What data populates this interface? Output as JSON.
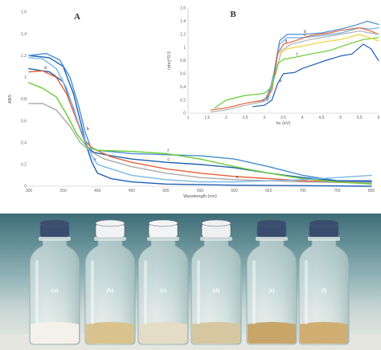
{
  "chart_data": [
    {
      "type": "line",
      "panel_letter": "A",
      "title": "",
      "xlabel": "Wavelength (nm)",
      "ylabel": "ABS",
      "xlim": [
        300,
        800
      ],
      "ylim": [
        0,
        1.6
      ],
      "xticks": [
        "300",
        "350",
        "400",
        "450",
        "500",
        "550",
        "600",
        "650",
        "700",
        "750",
        "800"
      ],
      "yticks": [
        "0",
        "0.2",
        "0.4",
        "0.6",
        "0.8",
        "1",
        "1.2",
        "1.4",
        "1.6"
      ],
      "grid": false,
      "series": [
        {
          "label": "a",
          "color": "#1f5fb3",
          "points": [
            [
              300,
              1.2
            ],
            [
              330,
              1.18
            ],
            [
              350,
              1.1
            ],
            [
              365,
              0.85
            ],
            [
              375,
              0.6
            ],
            [
              385,
              0.35
            ],
            [
              392,
              0.22
            ],
            [
              400,
              0.12
            ],
            [
              420,
              0.07
            ],
            [
              450,
              0.04
            ],
            [
              500,
              0.02
            ],
            [
              600,
              0.01
            ],
            [
              800,
              0.0
            ]
          ]
        },
        {
          "label": "b",
          "color": "#4a8ed0",
          "points": [
            [
              300,
              1.2
            ],
            [
              325,
              1.22
            ],
            [
              345,
              1.16
            ],
            [
              360,
              1.0
            ],
            [
              372,
              0.75
            ],
            [
              382,
              0.5
            ],
            [
              390,
              0.36
            ],
            [
              400,
              0.33
            ],
            [
              450,
              0.3
            ],
            [
              500,
              0.29
            ],
            [
              550,
              0.28
            ],
            [
              600,
              0.25
            ],
            [
              650,
              0.18
            ],
            [
              700,
              0.1
            ],
            [
              750,
              0.05
            ],
            [
              800,
              0.04
            ]
          ]
        },
        {
          "label": "c",
          "color": "#1f5fb3",
          "points": [
            [
              300,
              1.08
            ],
            [
              330,
              1.05
            ],
            [
              350,
              0.96
            ],
            [
              365,
              0.72
            ],
            [
              375,
              0.52
            ],
            [
              385,
              0.36
            ],
            [
              395,
              0.31
            ],
            [
              420,
              0.28
            ],
            [
              450,
              0.25
            ],
            [
              500,
              0.22
            ],
            [
              550,
              0.2
            ],
            [
              600,
              0.17
            ],
            [
              650,
              0.12
            ],
            [
              700,
              0.08
            ],
            [
              750,
              0.05
            ],
            [
              800,
              0.05
            ]
          ]
        },
        {
          "label": "d",
          "color": "#e8603a",
          "points": [
            [
              300,
              1.05
            ],
            [
              320,
              1.06
            ],
            [
              340,
              1.0
            ],
            [
              355,
              0.85
            ],
            [
              370,
              0.6
            ],
            [
              382,
              0.42
            ],
            [
              392,
              0.35
            ],
            [
              420,
              0.27
            ],
            [
              450,
              0.22
            ],
            [
              500,
              0.16
            ],
            [
              550,
              0.12
            ],
            [
              600,
              0.09
            ],
            [
              650,
              0.07
            ],
            [
              700,
              0.05
            ],
            [
              750,
              0.04
            ],
            [
              800,
              0.03
            ]
          ]
        },
        {
          "label": "e",
          "color": "#a9a9a9",
          "points": [
            [
              300,
              0.76
            ],
            [
              320,
              0.76
            ],
            [
              340,
              0.7
            ],
            [
              360,
              0.55
            ],
            [
              375,
              0.4
            ],
            [
              390,
              0.32
            ],
            [
              410,
              0.25
            ],
            [
              450,
              0.18
            ],
            [
              500,
              0.12
            ],
            [
              550,
              0.08
            ],
            [
              600,
              0.06
            ],
            [
              700,
              0.04
            ],
            [
              800,
              0.03
            ]
          ]
        },
        {
          "label": "f",
          "color": "#66cc33",
          "points": [
            [
              300,
              0.95
            ],
            [
              320,
              0.9
            ],
            [
              340,
              0.82
            ],
            [
              355,
              0.66
            ],
            [
              370,
              0.48
            ],
            [
              385,
              0.36
            ],
            [
              400,
              0.33
            ],
            [
              450,
              0.32
            ],
            [
              500,
              0.3
            ],
            [
              550,
              0.25
            ],
            [
              600,
              0.18
            ],
            [
              650,
              0.12
            ],
            [
              700,
              0.07
            ],
            [
              750,
              0.04
            ],
            [
              800,
              0.02
            ]
          ]
        },
        {
          "label": "",
          "color": "#7ab8e8",
          "points": [
            [
              300,
              1.18
            ],
            [
              320,
              1.17
            ],
            [
              340,
              1.08
            ],
            [
              355,
              0.9
            ],
            [
              370,
              0.62
            ],
            [
              382,
              0.42
            ],
            [
              392,
              0.28
            ],
            [
              400,
              0.2
            ],
            [
              450,
              0.1
            ],
            [
              500,
              0.06
            ],
            [
              550,
              0.04
            ],
            [
              600,
              0.04
            ],
            [
              650,
              0.05
            ],
            [
              700,
              0.06
            ],
            [
              750,
              0.08
            ],
            [
              800,
              0.1
            ]
          ]
        }
      ]
    },
    {
      "type": "line",
      "panel_letter": "B",
      "title": "",
      "xlabel": "hv (eV)",
      "ylabel": "(αhν)^0.5",
      "xlim": [
        1,
        6
      ],
      "ylim": [
        0,
        1.6
      ],
      "xticks": [
        "1",
        "1.5",
        "2",
        "2.5",
        "3",
        "3.5",
        "4",
        "4.5",
        "5",
        "5.5",
        "6"
      ],
      "yticks": [
        "0",
        "0.2",
        "0.4",
        "0.6",
        "0.8",
        "1",
        "1.2",
        "1.4",
        "1.6"
      ],
      "grid": false,
      "series": [
        {
          "label": "a",
          "color": "#1f5fb3",
          "points": [
            [
              2.7,
              0.1
            ],
            [
              3.0,
              0.12
            ],
            [
              3.2,
              0.2
            ],
            [
              3.35,
              0.45
            ],
            [
              3.5,
              0.6
            ],
            [
              3.8,
              0.62
            ],
            [
              4.0,
              0.68
            ],
            [
              4.3,
              0.74
            ],
            [
              4.6,
              0.8
            ],
            [
              5.0,
              0.87
            ],
            [
              5.3,
              0.9
            ],
            [
              5.6,
              1.05
            ],
            [
              5.8,
              0.98
            ],
            [
              6.0,
              0.8
            ]
          ]
        },
        {
          "label": "b",
          "color": "#4a8ed0",
          "points": [
            [
              2.9,
              0.18
            ],
            [
              3.1,
              0.25
            ],
            [
              3.25,
              0.6
            ],
            [
              3.4,
              1.1
            ],
            [
              3.6,
              1.2
            ],
            [
              4.0,
              1.2
            ],
            [
              4.5,
              1.22
            ],
            [
              5.0,
              1.28
            ],
            [
              5.4,
              1.34
            ],
            [
              5.7,
              1.4
            ],
            [
              6.0,
              1.35
            ]
          ]
        },
        {
          "label": "c",
          "color": "#6aaee6",
          "points": [
            [
              2.8,
              0.18
            ],
            [
              3.1,
              0.2
            ],
            [
              3.25,
              0.55
            ],
            [
              3.4,
              1.05
            ],
            [
              3.6,
              1.15
            ],
            [
              4.0,
              1.15
            ],
            [
              4.5,
              1.18
            ],
            [
              5.0,
              1.22
            ],
            [
              5.5,
              1.3
            ],
            [
              5.8,
              1.28
            ],
            [
              6.0,
              1.3
            ]
          ]
        },
        {
          "label": "d",
          "color": "#e8603a",
          "points": [
            [
              1.6,
              0.05
            ],
            [
              2.0,
              0.08
            ],
            [
              2.5,
              0.15
            ],
            [
              3.0,
              0.2
            ],
            [
              3.2,
              0.35
            ],
            [
              3.35,
              0.9
            ],
            [
              3.5,
              1.05
            ],
            [
              3.8,
              1.1
            ],
            [
              4.2,
              1.18
            ],
            [
              4.7,
              1.22
            ],
            [
              5.0,
              1.26
            ],
            [
              5.5,
              1.3
            ],
            [
              5.8,
              1.25
            ],
            [
              6.0,
              1.2
            ]
          ]
        },
        {
          "label": "e",
          "color": "#b0b0b0",
          "points": [
            [
              1.6,
              0.02
            ],
            [
              2.0,
              0.05
            ],
            [
              2.5,
              0.12
            ],
            [
              3.0,
              0.18
            ],
            [
              3.3,
              0.6
            ],
            [
              3.45,
              0.95
            ],
            [
              3.7,
              1.05
            ],
            [
              4.2,
              1.12
            ],
            [
              5.0,
              1.2
            ],
            [
              5.5,
              1.25
            ],
            [
              6.0,
              1.2
            ]
          ]
        },
        {
          "label": "f",
          "color": "#66cc33",
          "points": [
            [
              1.7,
              0.08
            ],
            [
              2.0,
              0.2
            ],
            [
              2.5,
              0.27
            ],
            [
              3.0,
              0.3
            ],
            [
              3.2,
              0.4
            ],
            [
              3.35,
              0.75
            ],
            [
              3.5,
              0.82
            ],
            [
              3.8,
              0.85
            ],
            [
              4.2,
              0.9
            ],
            [
              4.7,
              0.95
            ],
            [
              5.2,
              1.05
            ],
            [
              5.6,
              1.12
            ],
            [
              6.0,
              1.15
            ]
          ]
        },
        {
          "label": "",
          "color": "#f2d43a",
          "points": [
            [
              3.4,
              0.9
            ],
            [
              3.6,
              0.98
            ],
            [
              4.0,
              1.02
            ],
            [
              4.5,
              1.08
            ],
            [
              5.0,
              1.12
            ],
            [
              5.5,
              1.2
            ],
            [
              6.0,
              1.1
            ]
          ]
        }
      ]
    }
  ],
  "photo": {
    "vial_labels": [
      "(a)",
      "(b)",
      "(c)",
      "(d)",
      "(e)",
      "(f)"
    ],
    "cap_colors": [
      "#3a4d6e",
      "#f2f2f2",
      "#f4f4f4",
      "#f0f0f0",
      "#3a4d6e",
      "#3a4d6e"
    ],
    "powder_colors": [
      "#f4f1ea",
      "#d8c38f",
      "#e5dcc8",
      "#d6c7a0",
      "#c8a569",
      "#d0ae72"
    ]
  }
}
